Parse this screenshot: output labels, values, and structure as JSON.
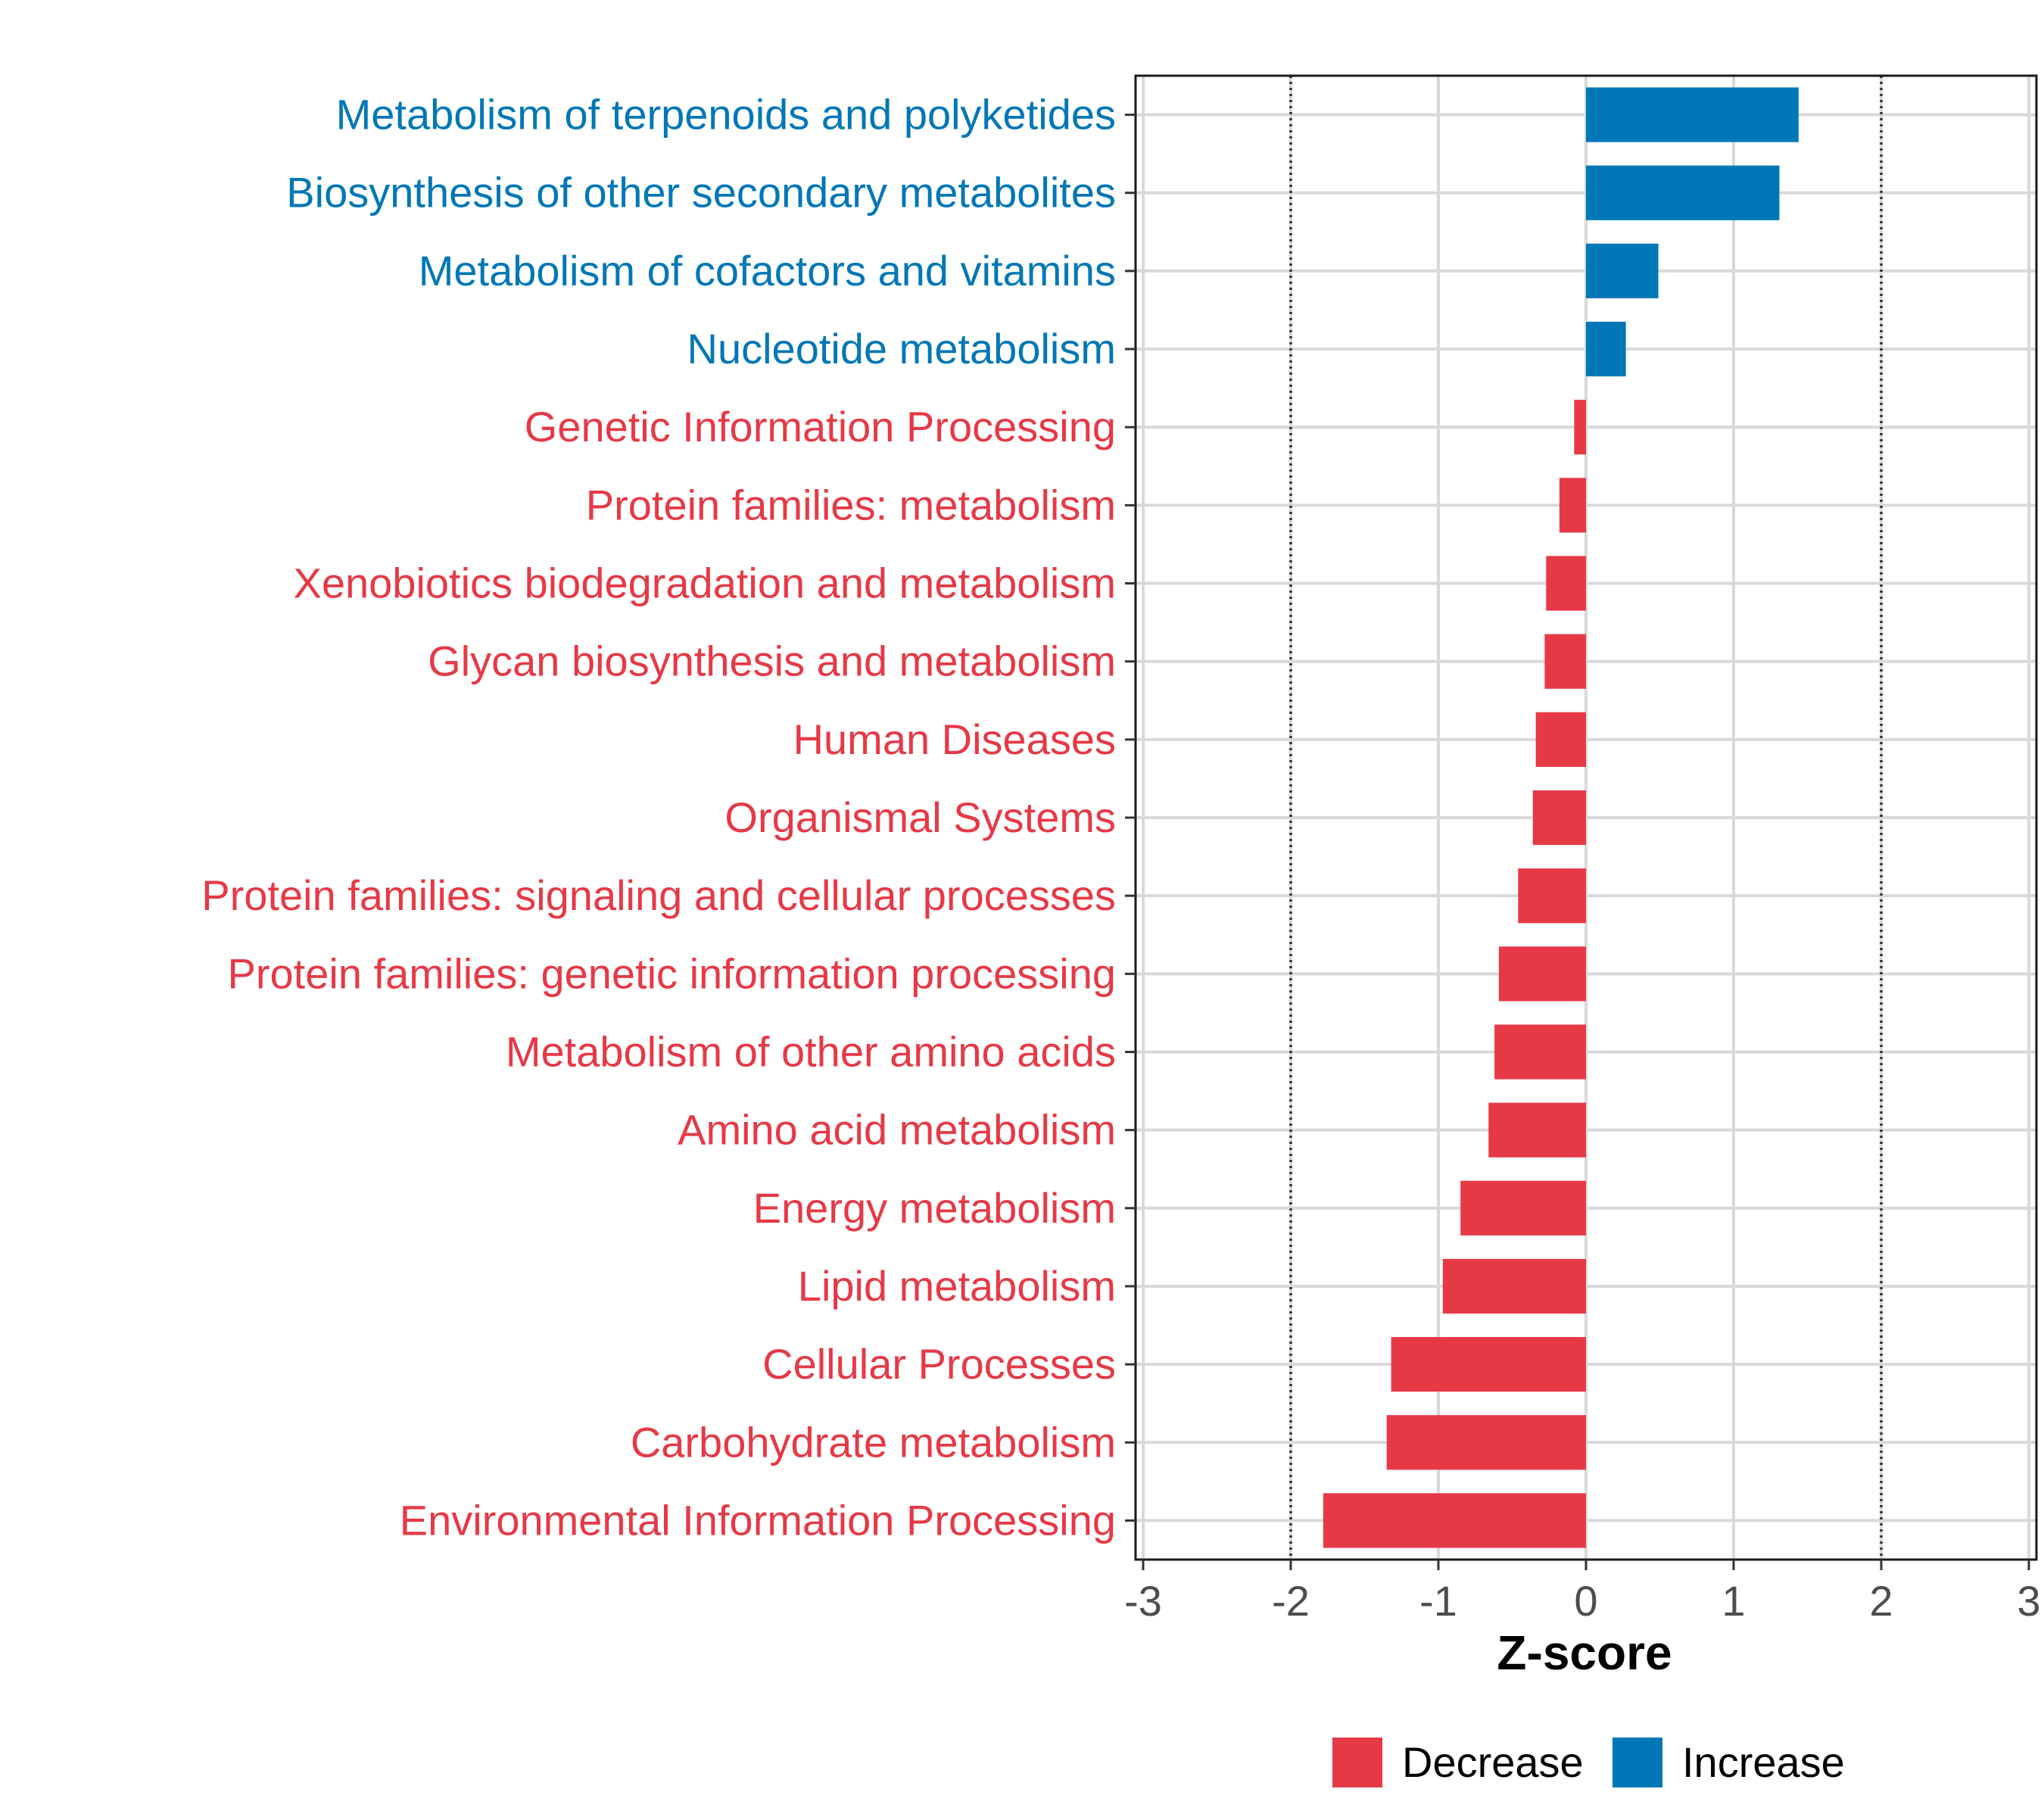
{
  "chart_data": {
    "type": "bar",
    "orientation": "horizontal",
    "title": "",
    "xlabel": "Z-score",
    "ylabel": "",
    "xlim": [
      -3,
      3
    ],
    "xticks": [
      -3,
      -2,
      -1,
      0,
      1,
      2,
      3
    ],
    "reference_lines": [
      -2,
      2
    ],
    "grid": true,
    "colors": {
      "Decrease": "#e63946",
      "Increase": "#0077b6"
    },
    "categories": [
      "Metabolism of terpenoids and polyketides",
      "Biosynthesis of other secondary metabolites",
      "Metabolism of cofactors and vitamins",
      "Nucleotide metabolism",
      "Genetic Information Processing",
      "Protein families: metabolism",
      "Xenobiotics biodegradation and metabolism",
      "Glycan biosynthesis and metabolism",
      "Human Diseases",
      "Organismal Systems",
      "Protein families: signaling and cellular processes",
      "Protein families: genetic information processing",
      "Metabolism of other amino acids",
      "Amino acid metabolism",
      "Energy metabolism",
      "Lipid metabolism",
      "Cellular Processes",
      "Carbohydrate metabolism",
      "Environmental Information Processing"
    ],
    "values": [
      1.44,
      1.31,
      0.49,
      0.27,
      -0.08,
      -0.18,
      -0.27,
      -0.28,
      -0.34,
      -0.36,
      -0.46,
      -0.59,
      -0.62,
      -0.66,
      -0.85,
      -0.97,
      -1.32,
      -1.35,
      -1.78
    ],
    "groups": [
      "Increase",
      "Increase",
      "Increase",
      "Increase",
      "Decrease",
      "Decrease",
      "Decrease",
      "Decrease",
      "Decrease",
      "Decrease",
      "Decrease",
      "Decrease",
      "Decrease",
      "Decrease",
      "Decrease",
      "Decrease",
      "Decrease",
      "Decrease",
      "Decrease"
    ],
    "legend": {
      "position": "bottom",
      "entries": [
        {
          "label": "Decrease",
          "color": "#e63946"
        },
        {
          "label": "Increase",
          "color": "#0077b6"
        }
      ]
    }
  }
}
